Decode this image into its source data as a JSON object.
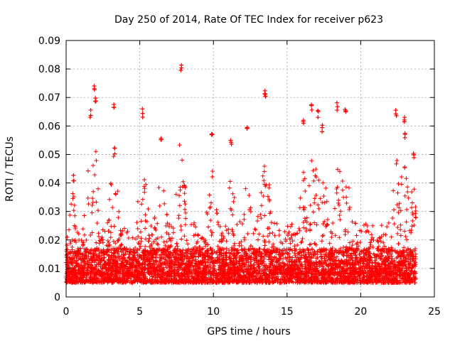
{
  "chart_data": {
    "type": "scatter",
    "title": "Day 250 of 2014, Rate Of TEC Index for receiver p623",
    "xlabel": "GPS time / hours",
    "ylabel": "ROTI / TECUs",
    "xlim": [
      0,
      25
    ],
    "ylim": [
      0,
      0.09
    ],
    "xticks": [
      "0",
      "5",
      "10",
      "15",
      "20",
      "25"
    ],
    "yticks": [
      "0",
      "0.01",
      "0.02",
      "0.03",
      "0.04",
      "0.05",
      "0.06",
      "0.07",
      "0.08",
      "0.09"
    ],
    "grid": true,
    "marker": "+",
    "color": "#ff0000",
    "series": [
      {
        "x_range": [
          0,
          23.75
        ],
        "highlights": [
          {
            "x": 0.5,
            "y": 0.0435
          },
          {
            "x": 1.65,
            "y": 0.066
          },
          {
            "x": 1.9,
            "y": 0.075
          },
          {
            "x": 2.0,
            "y": 0.071
          },
          {
            "x": 3.25,
            "y": 0.068
          },
          {
            "x": 3.3,
            "y": 0.053
          },
          {
            "x": 5.2,
            "y": 0.066
          },
          {
            "x": 6.45,
            "y": 0.056
          },
          {
            "x": 7.8,
            "y": 0.0815
          },
          {
            "x": 9.9,
            "y": 0.0575
          },
          {
            "x": 11.2,
            "y": 0.0555
          },
          {
            "x": 12.3,
            "y": 0.0595
          },
          {
            "x": 13.5,
            "y": 0.074
          },
          {
            "x": 13.55,
            "y": 0.0715
          },
          {
            "x": 16.1,
            "y": 0.063
          },
          {
            "x": 16.65,
            "y": 0.068
          },
          {
            "x": 17.1,
            "y": 0.066
          },
          {
            "x": 17.4,
            "y": 0.0605
          },
          {
            "x": 18.4,
            "y": 0.0685
          },
          {
            "x": 18.95,
            "y": 0.067
          },
          {
            "x": 22.4,
            "y": 0.066
          },
          {
            "x": 22.95,
            "y": 0.0635
          },
          {
            "x": 23.0,
            "y": 0.058
          },
          {
            "x": 23.6,
            "y": 0.051
          }
        ]
      }
    ]
  }
}
